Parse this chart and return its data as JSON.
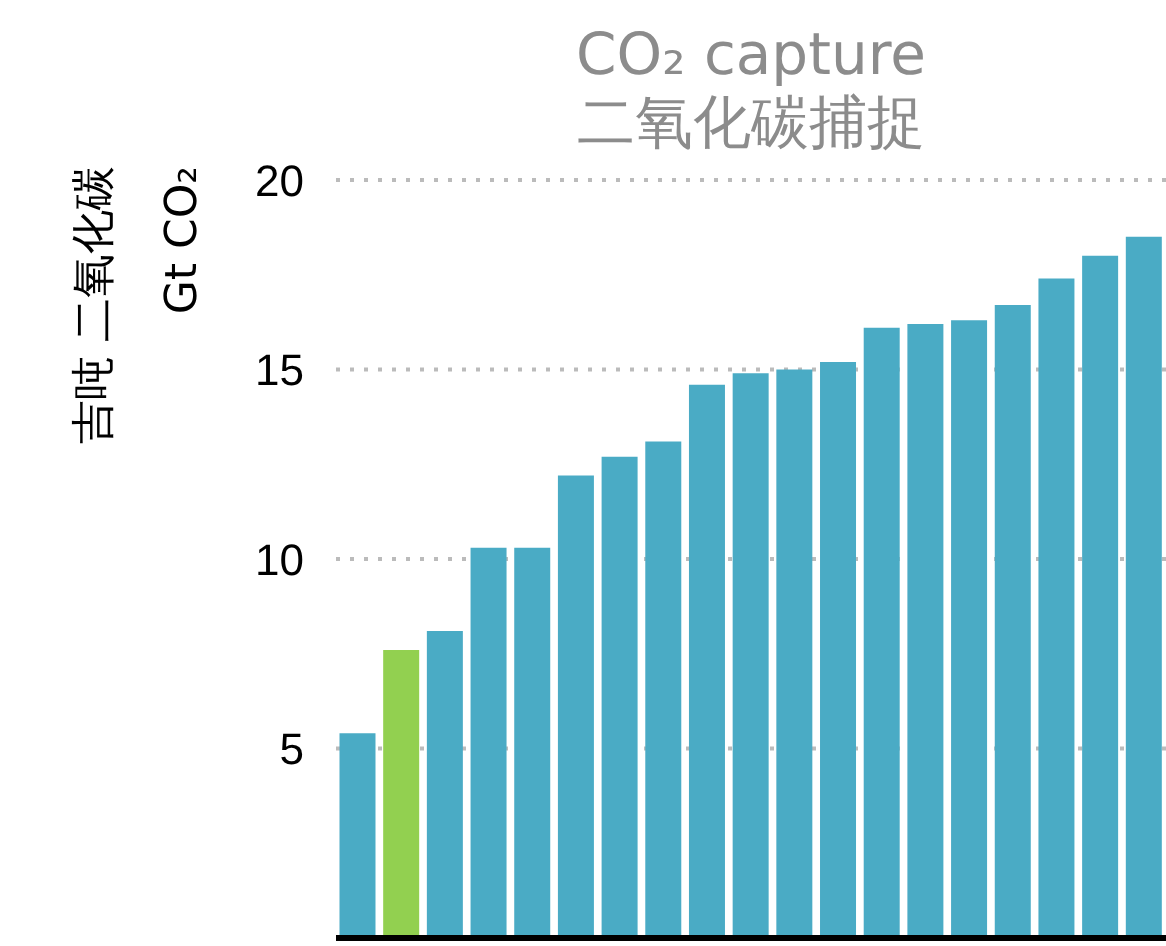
{
  "chart_data": {
    "type": "bar",
    "title": "CO₂ capture",
    "subtitle": "二氧化碳捕捉",
    "ylabel": "吉吨 二氧化碳\nGt CO₂",
    "categories": [
      null,
      null,
      null,
      null,
      null,
      null,
      null,
      null,
      null,
      null,
      null,
      null,
      null,
      null,
      null,
      null,
      null,
      null,
      null
    ],
    "values": [
      5.4,
      7.6,
      8.1,
      10.3,
      10.3,
      12.2,
      12.7,
      13.1,
      14.6,
      14.9,
      15.0,
      15.2,
      16.1,
      16.2,
      16.3,
      16.7,
      17.4,
      18.0,
      18.5
    ],
    "colors": [
      "#4aabc5",
      "#92d050",
      "#4aabc5",
      "#4aabc5",
      "#4aabc5",
      "#4aabc5",
      "#4aabc5",
      "#4aabc5",
      "#4aabc5",
      "#4aabc5",
      "#4aabc5",
      "#4aabc5",
      "#4aabc5",
      "#4aabc5",
      "#4aabc5",
      "#4aabc5",
      "#4aabc5",
      "#4aabc5",
      "#4aabc5"
    ],
    "ylim": [
      0,
      20
    ],
    "yticks": [
      5,
      10,
      15,
      20
    ],
    "grid": "y",
    "tick_labels": "y",
    "legend": false
  }
}
